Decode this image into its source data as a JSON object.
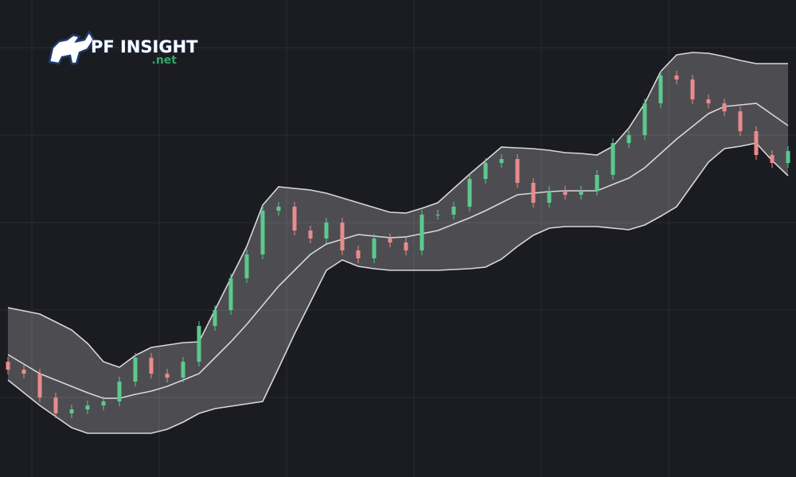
{
  "logo": {
    "name": "PF INSIGHT",
    "suffix": ".net"
  },
  "chart_data": {
    "type": "candlestick",
    "up_color": "#5cc98f",
    "down_color": "#e98b8d",
    "band_color": "#d8d8d8",
    "ylim": [
      0,
      600
    ],
    "open": [
      145,
      135,
      130,
      100,
      80,
      85,
      90,
      95,
      120,
      150,
      130,
      125,
      145,
      190,
      210,
      250,
      280,
      335,
      340,
      310,
      300,
      320,
      285,
      275,
      300,
      295,
      285,
      330,
      330,
      340,
      375,
      395,
      400,
      370,
      345,
      360,
      355,
      360,
      380,
      420,
      430,
      470,
      505,
      500,
      475,
      470,
      460,
      435,
      405,
      395
    ],
    "high": [
      151,
      141,
      136,
      106,
      91,
      96,
      101,
      126,
      156,
      156,
      136,
      151,
      196,
      216,
      256,
      286,
      341,
      346,
      346,
      316,
      326,
      326,
      291,
      306,
      306,
      301,
      336,
      336,
      346,
      381,
      401,
      406,
      406,
      376,
      366,
      366,
      366,
      386,
      426,
      436,
      476,
      511,
      511,
      506,
      481,
      476,
      466,
      441,
      411,
      416
    ],
    "low": [
      129,
      124,
      94,
      74,
      74,
      79,
      84,
      89,
      114,
      124,
      119,
      119,
      139,
      184,
      204,
      244,
      274,
      329,
      304,
      294,
      294,
      279,
      269,
      269,
      289,
      279,
      279,
      324,
      324,
      334,
      369,
      389,
      364,
      339,
      339,
      349,
      349,
      354,
      374,
      414,
      424,
      464,
      494,
      469,
      464,
      454,
      429,
      399,
      389,
      389
    ],
    "close": [
      135,
      130,
      100,
      80,
      85,
      90,
      95,
      120,
      150,
      130,
      125,
      145,
      190,
      210,
      250,
      280,
      335,
      340,
      310,
      300,
      320,
      285,
      275,
      300,
      295,
      285,
      330,
      330,
      340,
      375,
      395,
      400,
      370,
      345,
      360,
      355,
      360,
      380,
      420,
      430,
      470,
      505,
      500,
      475,
      470,
      460,
      435,
      405,
      395,
      410
    ],
    "bands": {
      "upper": [
        213,
        209,
        205,
        195,
        185,
        168,
        145,
        138,
        153,
        163,
        166,
        169,
        170,
        210,
        250,
        290,
        342,
        365,
        363,
        361,
        357,
        351,
        345,
        339,
        333,
        332,
        338,
        345,
        363,
        381,
        398,
        415,
        414,
        413,
        411,
        408,
        407,
        405,
        416,
        439,
        470,
        510,
        531,
        534,
        533,
        529,
        524,
        520,
        520,
        520
      ],
      "middle": [
        154,
        142,
        130,
        122,
        114,
        106,
        99,
        99,
        104,
        108,
        114,
        122,
        130,
        150,
        170,
        192,
        216,
        240,
        260,
        280,
        293,
        299,
        305,
        303,
        301,
        302,
        306,
        310,
        318,
        326,
        335,
        345,
        355,
        357,
        359,
        360,
        360,
        360,
        368,
        376,
        389,
        407,
        425,
        441,
        457,
        466,
        468,
        470,
        456,
        442
      ],
      "lower": [
        122,
        106,
        90,
        76,
        62,
        55,
        55,
        55,
        55,
        55,
        60,
        69,
        80,
        86,
        89,
        92,
        95,
        137,
        180,
        220,
        260,
        273,
        265,
        262,
        260,
        260,
        260,
        260,
        261,
        262,
        264,
        274,
        290,
        304,
        313,
        315,
        315,
        315,
        313,
        311,
        317,
        328,
        340,
        368,
        396,
        413,
        416,
        420,
        398,
        379
      ]
    }
  }
}
